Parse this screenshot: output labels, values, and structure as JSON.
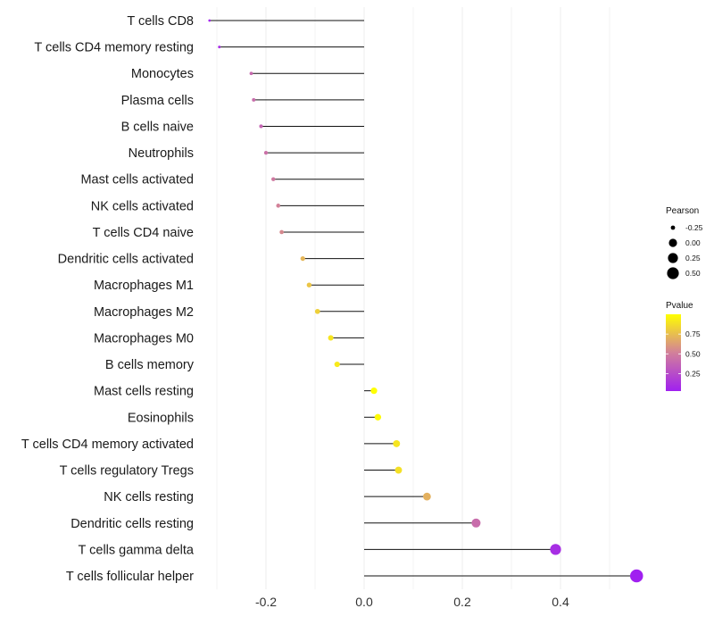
{
  "chart_data": {
    "type": "lollipop",
    "title": "",
    "xlabel": "",
    "ylabel": "",
    "xlim": [
      -0.32,
      0.56
    ],
    "x_ticks": [
      {
        "value": -0.2,
        "label": "-0.2"
      },
      {
        "value": 0.0,
        "label": "0.0"
      },
      {
        "value": 0.2,
        "label": "0.2"
      },
      {
        "value": 0.4,
        "label": "0.4"
      }
    ],
    "grid": true,
    "categories": [
      "T cells CD8",
      "T cells CD4 memory resting",
      "Monocytes",
      "Plasma cells",
      "B cells naive",
      "Neutrophils",
      "Mast cells activated",
      "NK cells activated",
      "T cells CD4 naive",
      "Dendritic cells activated",
      "Macrophages M1",
      "Macrophages M2",
      "Macrophages M0",
      "B cells memory",
      "Mast cells resting",
      "Eosinophils",
      "T cells CD4 memory activated",
      "T cells regulatory  Tregs ",
      "NK cells resting",
      "Dendritic cells resting",
      "T cells gamma delta",
      "T cells follicular helper"
    ],
    "pearson": [
      -0.315,
      -0.295,
      -0.23,
      -0.225,
      -0.21,
      -0.2,
      -0.185,
      -0.175,
      -0.168,
      -0.125,
      -0.112,
      -0.095,
      -0.068,
      -0.055,
      0.02,
      0.028,
      0.066,
      0.07,
      0.128,
      0.228,
      0.39,
      0.555
    ],
    "pvalue": [
      0.05,
      0.1,
      0.4,
      0.42,
      0.38,
      0.44,
      0.48,
      0.52,
      0.55,
      0.72,
      0.78,
      0.82,
      0.9,
      0.92,
      1.0,
      0.98,
      0.9,
      0.88,
      0.7,
      0.42,
      0.1,
      0.02
    ],
    "legend": {
      "position": "right",
      "size_title": "Pearson",
      "size_breaks": [
        {
          "value": -0.25,
          "label": "-0.25"
        },
        {
          "value": 0.0,
          "label": "0.00"
        },
        {
          "value": 0.25,
          "label": "0.25"
        },
        {
          "value": 0.5,
          "label": "0.50"
        }
      ],
      "color_title": "Pvalue",
      "color_range": [
        0.03,
        1.0
      ],
      "color_breaks": [
        {
          "value": 0.75,
          "label": "0.75"
        },
        {
          "value": 0.5,
          "label": "0.50"
        },
        {
          "value": 0.25,
          "label": "0.25"
        }
      ],
      "color_low": "#A020F0",
      "color_mid": "#D2809A",
      "color_high": "#FFFF00"
    },
    "colors": {
      "segment": "#111111",
      "grid": "#ebebeb"
    }
  }
}
